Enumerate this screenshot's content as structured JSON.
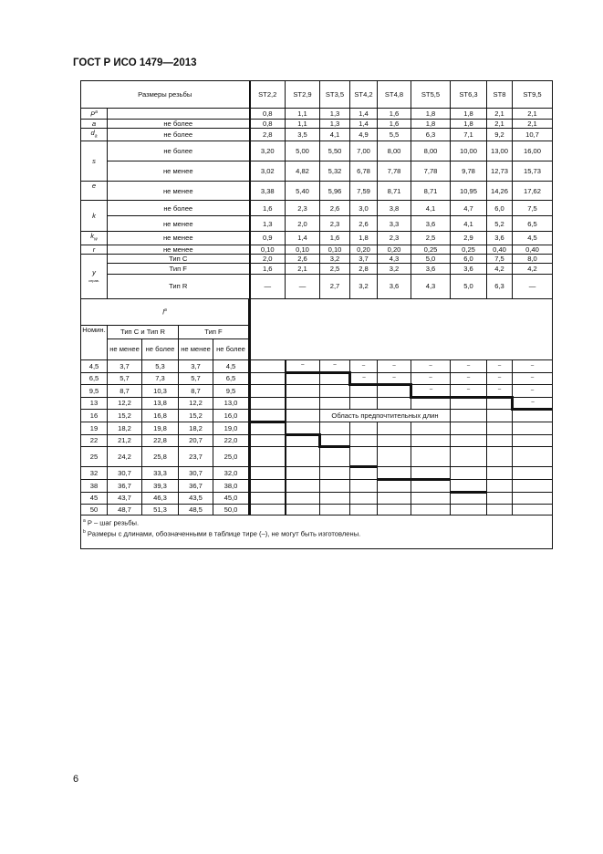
{
  "header": {
    "title": "ГОСТ Р ИСО 1479—2013"
  },
  "footer": {
    "page_number": "6"
  },
  "table": {
    "head_label": "Размеры резьбы",
    "sizes": [
      "ST2,2",
      "ST2,9",
      "ST3,5",
      "ST4,2",
      "ST4,8",
      "ST5,5",
      "ST6,3",
      "ST8",
      "ST9,5"
    ],
    "groups": [
      {
        "symbol": "P",
        "sup": "a",
        "rows": [
          {
            "qual": "",
            "values": [
              "0,8",
              "1,1",
              "1,3",
              "1,4",
              "1,6",
              "1,8",
              "1,8",
              "2,1",
              "2,1"
            ]
          }
        ]
      },
      {
        "symbol": "a",
        "rows": [
          {
            "qual": "не более",
            "values": [
              "0,8",
              "1,1",
              "1,3",
              "1,4",
              "1,6",
              "1,8",
              "1,8",
              "2,1",
              "2,1"
            ]
          }
        ]
      },
      {
        "symbol": "d",
        "sub": "a",
        "rows": [
          {
            "qual": "не более",
            "values": [
              "2,8",
              "3,5",
              "4,1",
              "4,9",
              "5,5",
              "6,3",
              "7,1",
              "9,2",
              "10,7"
            ]
          }
        ]
      },
      {
        "symbol": "s",
        "rows": [
          {
            "qual": "не более",
            "values": [
              "3,20",
              "5,00",
              "5,50",
              "7,00",
              "8,00",
              "8,00",
              "10,00",
              "13,00",
              "16,00"
            ]
          },
          {
            "qual": "не менее",
            "values": [
              "3,02",
              "4,82",
              "5,32",
              "6,78",
              "7,78",
              "7,78",
              "9,78",
              "12,73",
              "15,73"
            ]
          }
        ]
      },
      {
        "symbol": "e",
        "rows": [
          {
            "qual": "не менее",
            "values": [
              "3,38",
              "5,40",
              "5,96",
              "7,59",
              "8,71",
              "8,71",
              "10,95",
              "14,26",
              "17,62"
            ]
          }
        ]
      },
      {
        "symbol": "k",
        "rows": [
          {
            "qual": "не более",
            "values": [
              "1,6",
              "2,3",
              "2,6",
              "3,0",
              "3,8",
              "4,1",
              "4,7",
              "6,0",
              "7,5"
            ]
          },
          {
            "qual": "не менее",
            "values": [
              "1,3",
              "2,0",
              "2,3",
              "2,6",
              "3,3",
              "3,6",
              "4,1",
              "5,2",
              "6,5"
            ]
          }
        ]
      },
      {
        "symbol": "k",
        "sub": "w",
        "rows": [
          {
            "qual": "не менее",
            "values": [
              "0,9",
              "1,4",
              "1,6",
              "1,8",
              "2,3",
              "2,5",
              "2,9",
              "3,6",
              "4,5"
            ]
          }
        ]
      },
      {
        "symbol": "r",
        "rows": [
          {
            "qual": "не менее",
            "values": [
              "0,10",
              "0,10",
              "0,10",
              "0,20",
              "0,20",
              "0,25",
              "0,25",
              "0,40",
              "0,40"
            ]
          }
        ]
      },
      {
        "symbol": "y",
        "sub": "справ.",
        "rows": [
          {
            "qual": "Тип C",
            "values": [
              "2,0",
              "2,6",
              "3,2",
              "3,7",
              "4,3",
              "5,0",
              "6,0",
              "7,5",
              "8,0"
            ]
          },
          {
            "qual": "Тип F",
            "values": [
              "1,6",
              "2,1",
              "2,5",
              "2,8",
              "3,2",
              "3,6",
              "3,6",
              "4,2",
              "4,2"
            ]
          },
          {
            "qual": "Тип R",
            "values": [
              "—",
              "—",
              "2,7",
              "3,2",
              "3,6",
              "4,3",
              "5,0",
              "6,3",
              "—"
            ]
          }
        ]
      }
    ],
    "length_label": "l",
    "length_sup": "a",
    "nom_label": "Номин.",
    "type_cr": "Тип C и Тип R",
    "type_f": "Тип F",
    "min_label": "не менее",
    "max_label": "не более",
    "preferred_label": "Область предпочтительных длин",
    "lengths": [
      {
        "nom": "4,5",
        "c_min": "3,7",
        "c_max": "5,3",
        "f_min": "3,7",
        "f_max": "4,5",
        "cells": [
          "",
          "–",
          "–",
          "–",
          "–",
          "–",
          "–",
          "–",
          "–"
        ]
      },
      {
        "nom": "6,5",
        "c_min": "5,7",
        "c_max": "7,3",
        "f_min": "5,7",
        "f_max": "6,5",
        "cells": [
          "",
          "",
          "",
          "–",
          "–",
          "–",
          "–",
          "–",
          "–"
        ]
      },
      {
        "nom": "9,5",
        "c_min": "8,7",
        "c_max": "10,3",
        "f_min": "8,7",
        "f_max": "9,5",
        "cells": [
          "",
          "",
          "",
          "",
          "",
          "–",
          "–",
          "–",
          "–"
        ]
      },
      {
        "nom": "13",
        "c_min": "12,2",
        "c_max": "13,8",
        "f_min": "12,2",
        "f_max": "13,0",
        "cells": [
          "",
          "",
          "",
          "",
          "",
          "",
          "",
          "",
          "–"
        ]
      },
      {
        "nom": "16",
        "c_min": "15,2",
        "c_max": "16,8",
        "f_min": "15,2",
        "f_max": "16,0",
        "cells": [
          "",
          "",
          "",
          "",
          "",
          "",
          "",
          "",
          ""
        ]
      },
      {
        "nom": "19",
        "c_min": "18,2",
        "c_max": "19,8",
        "f_min": "18,2",
        "f_max": "19,0",
        "cells": [
          "",
          "",
          "",
          "",
          "",
          "",
          "",
          "",
          ""
        ]
      },
      {
        "nom": "22",
        "c_min": "21,2",
        "c_max": "22,8",
        "f_min": "20,7",
        "f_max": "22,0",
        "cells": [
          "",
          "",
          "",
          "",
          "",
          "",
          "",
          "",
          ""
        ]
      },
      {
        "nom": "25",
        "c_min": "24,2",
        "c_max": "25,8",
        "f_min": "23,7",
        "f_max": "25,0",
        "cells": [
          "",
          "",
          "",
          "",
          "",
          "",
          "",
          "",
          ""
        ]
      },
      {
        "nom": "32",
        "c_min": "30,7",
        "c_max": "33,3",
        "f_min": "30,7",
        "f_max": "32,0",
        "cells": [
          "",
          "",
          "",
          "",
          "",
          "",
          "",
          "",
          ""
        ]
      },
      {
        "nom": "38",
        "c_min": "36,7",
        "c_max": "39,3",
        "f_min": "36,7",
        "f_max": "38,0",
        "cells": [
          "",
          "",
          "",
          "",
          "",
          "",
          "",
          "",
          ""
        ]
      },
      {
        "nom": "45",
        "c_min": "43,7",
        "c_max": "46,3",
        "f_min": "43,5",
        "f_max": "45,0",
        "cells": [
          "",
          "",
          "",
          "",
          "",
          "",
          "",
          "",
          ""
        ]
      },
      {
        "nom": "50",
        "c_min": "48,7",
        "c_max": "51,3",
        "f_min": "48,5",
        "f_max": "50,0",
        "cells": [
          "",
          "",
          "",
          "",
          "",
          "",
          "",
          "",
          ""
        ]
      }
    ],
    "footnotes": [
      {
        "mark": "a",
        "text": "P – шаг резьбы."
      },
      {
        "mark": "b",
        "text": "Размеры с длинами, обозначенными  в таблице тире (–), не могут быть изготовлены."
      }
    ]
  }
}
